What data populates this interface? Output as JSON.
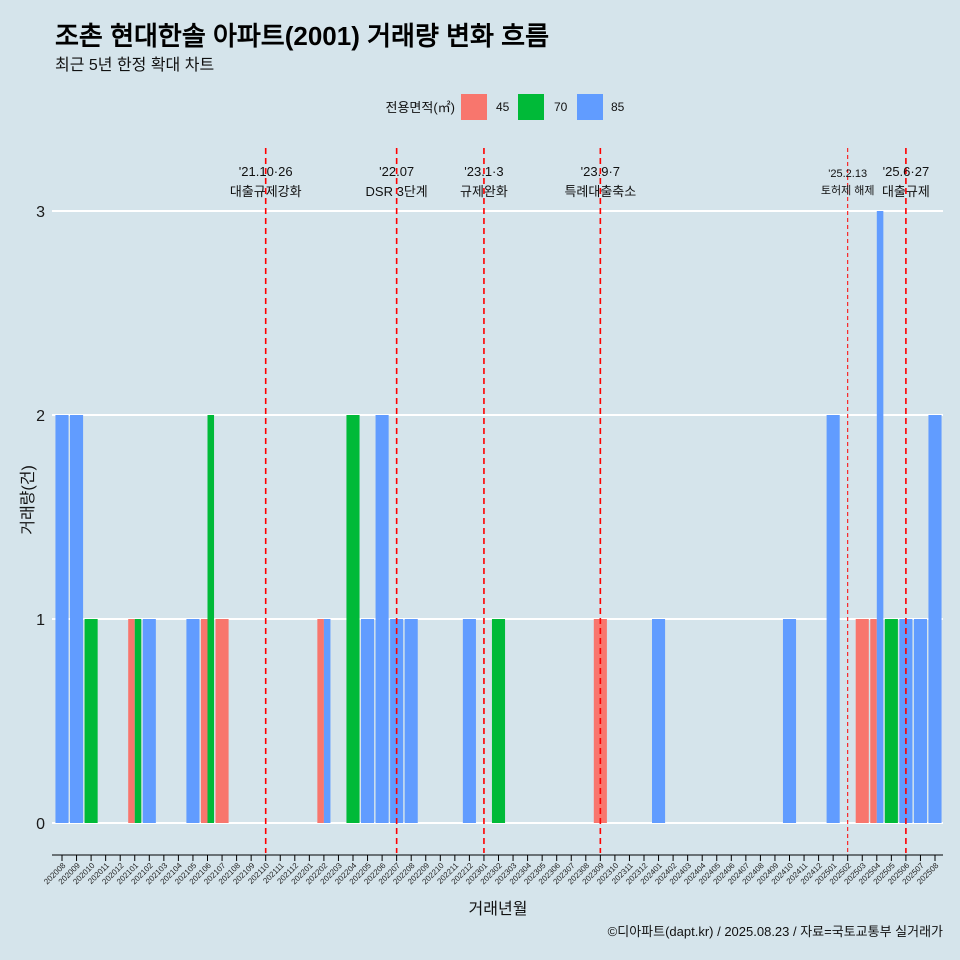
{
  "chart_data": {
    "type": "bar",
    "barmode": "group",
    "title": "조촌 현대한솔 아파트(2001) 거래량 변화 흐름",
    "subtitle": "최근 5년 한정 확대 차트",
    "xlabel": "거래년월",
    "ylabel": "거래량(건)",
    "caption": "©디아파트(dapt.kr) / 2025.08.23 / 자료=국토교통부 실거래가",
    "legend": {
      "title": "전용면적(㎡)",
      "position": "top"
    },
    "background_color": "#D5E4EB",
    "grid": {
      "horizontal": true,
      "vertical": false,
      "color": "#FFFFFF"
    },
    "ylim": [
      0,
      3
    ],
    "yticks": [
      0,
      1,
      2,
      3
    ],
    "categories": [
      "202008",
      "202009",
      "202010",
      "202011",
      "202012",
      "202101",
      "202102",
      "202103",
      "202104",
      "202105",
      "202106",
      "202107",
      "202108",
      "202109",
      "202110",
      "202111",
      "202112",
      "202201",
      "202202",
      "202203",
      "202204",
      "202205",
      "202206",
      "202207",
      "202208",
      "202209",
      "202210",
      "202211",
      "202212",
      "202301",
      "202302",
      "202303",
      "202304",
      "202305",
      "202306",
      "202307",
      "202308",
      "202309",
      "202310",
      "202311",
      "202312",
      "202401",
      "202402",
      "202403",
      "202404",
      "202405",
      "202406",
      "202407",
      "202408",
      "202409",
      "202410",
      "202411",
      "202412",
      "202501",
      "202502",
      "202503",
      "202504",
      "202505",
      "202506",
      "202507",
      "202508"
    ],
    "series": [
      {
        "name": "45",
        "color": "#F8766D",
        "values": [
          0,
          0,
          0,
          0,
          0,
          1,
          0,
          0,
          0,
          0,
          1,
          1,
          0,
          0,
          0,
          0,
          0,
          0,
          1,
          0,
          0,
          0,
          0,
          0,
          0,
          0,
          0,
          0,
          0,
          0,
          0,
          0,
          0,
          0,
          0,
          0,
          0,
          1,
          0,
          0,
          0,
          0,
          0,
          0,
          0,
          0,
          0,
          0,
          0,
          0,
          0,
          0,
          0,
          0,
          0,
          1,
          1,
          0,
          0,
          0,
          0
        ]
      },
      {
        "name": "70",
        "color": "#00BA38",
        "values": [
          0,
          0,
          1,
          0,
          0,
          1,
          0,
          0,
          0,
          0,
          2,
          0,
          0,
          0,
          0,
          0,
          0,
          0,
          0,
          0,
          2,
          0,
          0,
          0,
          0,
          0,
          0,
          0,
          0,
          0,
          1,
          0,
          0,
          0,
          0,
          0,
          0,
          0,
          0,
          0,
          0,
          0,
          0,
          0,
          0,
          0,
          0,
          0,
          0,
          0,
          0,
          0,
          0,
          0,
          0,
          0,
          0,
          1,
          0,
          0,
          0
        ]
      },
      {
        "name": "85",
        "color": "#619CFF",
        "values": [
          2,
          2,
          0,
          0,
          0,
          0,
          1,
          0,
          0,
          1,
          0,
          0,
          0,
          0,
          0,
          0,
          0,
          0,
          1,
          0,
          0,
          1,
          2,
          1,
          1,
          0,
          0,
          0,
          1,
          0,
          0,
          0,
          0,
          0,
          0,
          0,
          0,
          0,
          0,
          0,
          0,
          1,
          0,
          0,
          0,
          0,
          0,
          0,
          0,
          0,
          1,
          0,
          0,
          2,
          0,
          0,
          3,
          0,
          1,
          1,
          2
        ]
      }
    ],
    "annotation_color": "#FF0000",
    "annotation_line": "dashed",
    "annotations": [
      {
        "x": "202110",
        "date": "'21.10·26",
        "text": "대출규제강화"
      },
      {
        "x": "202207",
        "date": "'22.07",
        "text": "DSR 3단계"
      },
      {
        "x": "202301",
        "date": "'23.1·3",
        "text": "규제완화"
      },
      {
        "x": "202309",
        "date": "'23.9·7",
        "text": "특례대출축소"
      },
      {
        "x": "202502",
        "date": "'25.2.13",
        "text": "토허제 해제",
        "minor": true
      },
      {
        "x": "202506",
        "date": "'25.6·27",
        "text": "대출규제"
      }
    ]
  }
}
